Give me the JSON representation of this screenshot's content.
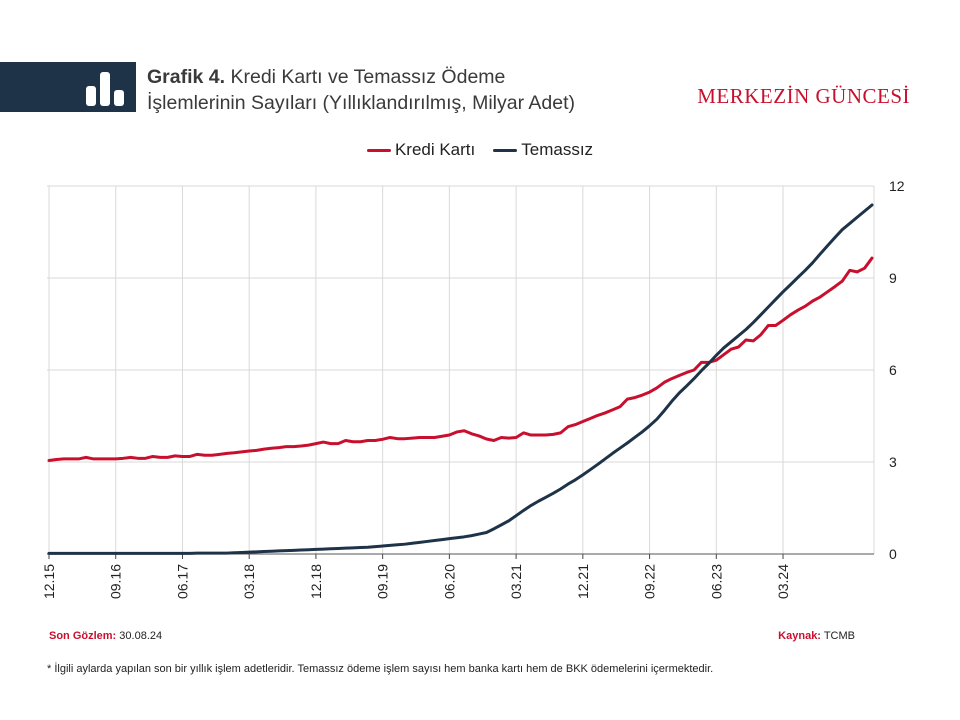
{
  "header": {
    "title_bold": "Grafik 4.",
    "title_line1": "Kredi Kartı ve Temassız Ödeme",
    "title_line2": "İşlemlerinin Sayıları (Yıllıklandırılmış, Milyar Adet)",
    "brand": "MERKEZİN GÜNCESİ",
    "icon": "bar-chart-icon"
  },
  "colors": {
    "kredi": "#c8102e",
    "temassiz": "#1e3348",
    "header_band": "#1e3348",
    "grid": "#d9d9d9"
  },
  "footer": {
    "left_label": "Son Gözlem:",
    "left_value": "30.08.24",
    "right_label": "Kaynak:",
    "right_value": "TCMB",
    "note": "* İlgili aylarda yapılan son bir yıllık işlem adetleridir. Temassız ödeme işlem sayısı hem banka kartı hem de BKK ödemelerini içermektedir."
  },
  "chart_data": {
    "type": "line",
    "x_start": "12.15",
    "x_end": "08.24",
    "x_tick_labels": [
      "12.15",
      "09.16",
      "06.17",
      "03.18",
      "12.18",
      "09.19",
      "06.20",
      "03.21",
      "12.21",
      "09.22",
      "06.23",
      "03.24"
    ],
    "y_axis_side": "right",
    "ylim": [
      0,
      12
    ],
    "y_ticks": [
      0,
      3,
      6,
      9,
      12
    ],
    "grid": true,
    "legend_position": "top-center",
    "series": [
      {
        "name": "Kredi Kartı",
        "color": "#c8102e",
        "values": [
          3.05,
          3.08,
          3.1,
          3.1,
          3.1,
          3.15,
          3.1,
          3.1,
          3.1,
          3.1,
          3.12,
          3.15,
          3.12,
          3.12,
          3.18,
          3.15,
          3.15,
          3.2,
          3.18,
          3.18,
          3.25,
          3.22,
          3.22,
          3.25,
          3.28,
          3.3,
          3.33,
          3.36,
          3.38,
          3.42,
          3.45,
          3.47,
          3.5,
          3.5,
          3.52,
          3.55,
          3.6,
          3.65,
          3.6,
          3.6,
          3.7,
          3.66,
          3.66,
          3.7,
          3.7,
          3.74,
          3.8,
          3.76,
          3.76,
          3.78,
          3.8,
          3.8,
          3.8,
          3.84,
          3.88,
          3.98,
          4.02,
          3.92,
          3.85,
          3.75,
          3.7,
          3.8,
          3.78,
          3.8,
          3.95,
          3.88,
          3.88,
          3.88,
          3.9,
          3.95,
          4.15,
          4.22,
          4.32,
          4.42,
          4.52,
          4.6,
          4.7,
          4.8,
          5.05,
          5.1,
          5.18,
          5.28,
          5.42,
          5.6,
          5.72,
          5.82,
          5.92,
          6.0,
          6.25,
          6.25,
          6.32,
          6.5,
          6.68,
          6.75,
          6.98,
          6.95,
          7.15,
          7.45,
          7.45,
          7.62,
          7.8,
          7.95,
          8.08,
          8.25,
          8.38,
          8.55,
          8.72,
          8.9,
          9.25,
          9.2,
          9.32,
          9.65
        ]
      },
      {
        "name": "Temassız",
        "color": "#1e3348",
        "values": [
          0.02,
          0.02,
          0.02,
          0.02,
          0.02,
          0.02,
          0.02,
          0.02,
          0.02,
          0.02,
          0.02,
          0.02,
          0.02,
          0.02,
          0.02,
          0.02,
          0.02,
          0.02,
          0.02,
          0.02,
          0.03,
          0.03,
          0.03,
          0.03,
          0.03,
          0.04,
          0.05,
          0.06,
          0.07,
          0.08,
          0.09,
          0.1,
          0.11,
          0.12,
          0.13,
          0.14,
          0.15,
          0.16,
          0.17,
          0.18,
          0.19,
          0.2,
          0.21,
          0.22,
          0.24,
          0.26,
          0.28,
          0.3,
          0.32,
          0.35,
          0.38,
          0.41,
          0.44,
          0.47,
          0.5,
          0.53,
          0.56,
          0.6,
          0.65,
          0.7,
          0.82,
          0.95,
          1.08,
          1.25,
          1.42,
          1.58,
          1.72,
          1.85,
          1.98,
          2.12,
          2.28,
          2.42,
          2.58,
          2.75,
          2.92,
          3.1,
          3.28,
          3.45,
          3.62,
          3.8,
          3.98,
          4.18,
          4.4,
          4.68,
          4.98,
          5.25,
          5.48,
          5.72,
          5.98,
          6.22,
          6.48,
          6.72,
          6.92,
          7.12,
          7.32,
          7.55,
          7.8,
          8.05,
          8.3,
          8.55,
          8.78,
          9.02,
          9.25,
          9.5,
          9.78,
          10.05,
          10.32,
          10.58,
          10.78,
          10.98,
          11.18,
          11.38
        ]
      }
    ]
  }
}
